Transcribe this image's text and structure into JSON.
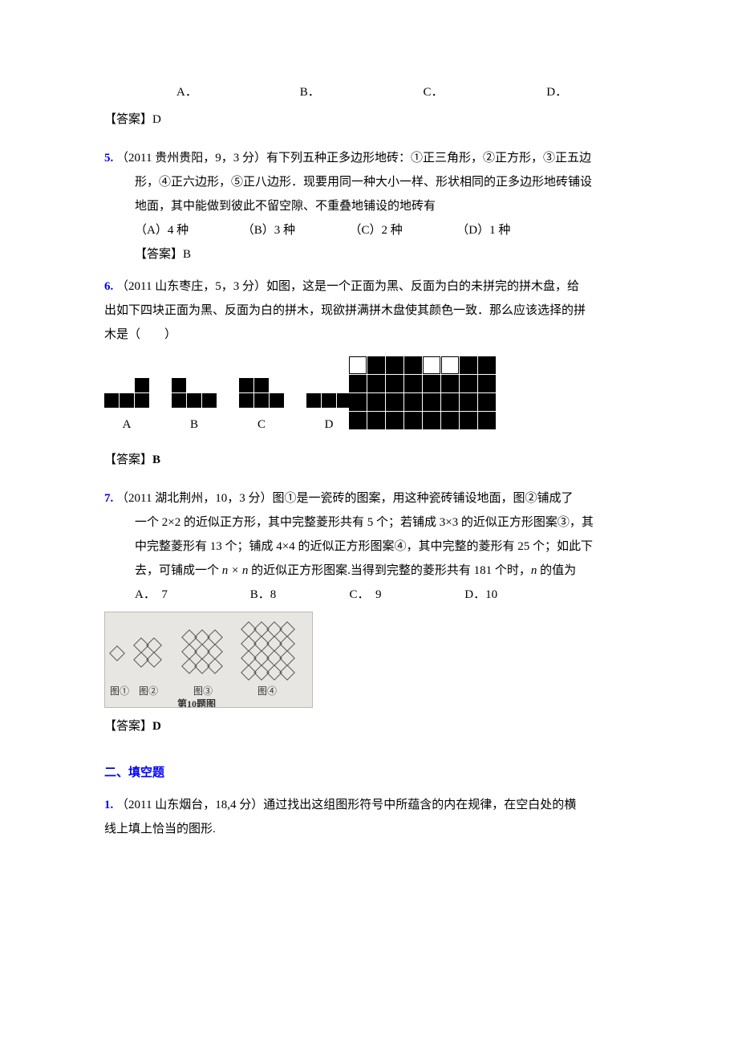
{
  "q4": {
    "optA": "A．",
    "optB": "B．",
    "optC": "C．",
    "optD": "D．",
    "answer_label": "【答案】",
    "answer_val": "D"
  },
  "q5": {
    "num": "5.",
    "src": "（2011 贵州贵阳，9，3 分）",
    "text1": "有下列五种正多边形地砖：①正三角形，②正方形，③正五边",
    "text2": "形，④正六边形，⑤正八边形．现要用同一种大小一样、形状相同的正多边形地砖铺设",
    "text3": "地面，其中能做到彼此不留空隙、不重叠地铺设的地砖有",
    "optA": "（A）4 种",
    "optB": "（B）3 种",
    "optC": "（C）2 种",
    "optD": "（D）1 种",
    "answer_label": "【答案】",
    "answer_val": "B"
  },
  "q6": {
    "num": "6.",
    "src": "（2011 山东枣庄，5，3 分）",
    "text1": "如图，这是一个正面为黑、反面为白的未拼完的拼木盘，给",
    "text2": "出如下四块正面为黑、反面为白的拼木，现欲拼满拼木盘使其颜色一致．那么应该选择的拼",
    "text3": "木是（　　）",
    "board_grid": [
      [
        0,
        1,
        1,
        1,
        0,
        0,
        1,
        1
      ],
      [
        1,
        1,
        1,
        1,
        1,
        1,
        1,
        1
      ],
      [
        1,
        1,
        1,
        1,
        1,
        1,
        1,
        1
      ],
      [
        1,
        1,
        1,
        1,
        1,
        1,
        1,
        1
      ]
    ],
    "pieceA": {
      "cols": 3,
      "rows": 2,
      "cells": [
        0,
        0,
        1,
        1,
        1,
        1
      ]
    },
    "pieceB": {
      "cols": 3,
      "rows": 2,
      "cells": [
        1,
        0,
        0,
        1,
        1,
        1
      ]
    },
    "pieceC": {
      "cols": 3,
      "rows": 2,
      "cells": [
        1,
        1,
        0,
        1,
        1,
        1
      ]
    },
    "pieceD": {
      "cols": 3,
      "rows": 2,
      "cells": [
        0,
        0,
        0,
        1,
        1,
        1
      ]
    },
    "labelA": "A",
    "labelB": "B",
    "labelC": "C",
    "labelD": "D",
    "answer_label": "【答案】",
    "answer_val": "B"
  },
  "q7": {
    "num": "7.",
    "src": "（2011 湖北荆州，10，3 分）",
    "text1": "图①是一瓷砖的图案，用这种瓷砖铺设地面，图②铺成了",
    "text2": "一个 2×2 的近似正方形，其中完整菱形共有 5 个；若铺成 3×3 的近似正方形图案③，其",
    "text3": "中完整菱形有 13 个；铺成 4×4 的近似正方形图案④，其中完整的菱形有 25 个；如此下",
    "text4_a": "去，可铺成一个 ",
    "text4_b": " 的近似正方形图案.当得到完整的菱形共有 181 个时，",
    "text4_c": " 的值为",
    "n": "n",
    "times": " × ",
    "optA": "A．　7",
    "optB": "B．8",
    "optC": "C．　9",
    "optD": "D．10",
    "img_caption_1": "图①",
    "img_caption_2": "图②",
    "img_caption_3": "图③",
    "img_caption_4": "图④",
    "img_caption_main": "第10题图",
    "answer_label": "【答案】",
    "answer_val": "D"
  },
  "section2": {
    "head": "二、填空题"
  },
  "s2q1": {
    "num": "1.",
    "src": "（2011 山东烟台，18,4 分）",
    "text1": "通过找出这组图形符号中所蕴含的内在规律，在空白处的横",
    "text2": "线上填上恰当的图形."
  },
  "colors": {
    "link_blue": "#0000ff",
    "black": "#000000",
    "white": "#ffffff"
  }
}
